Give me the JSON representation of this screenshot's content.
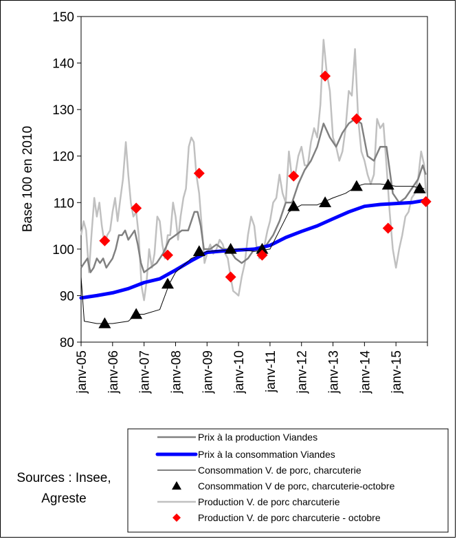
{
  "chart_data": {
    "type": "line",
    "ylabel": "Base 100 en 2010",
    "ylim": [
      80,
      150
    ],
    "yticks": [
      80,
      90,
      100,
      110,
      120,
      130,
      140,
      150
    ],
    "xtick_labels": [
      "janv-05",
      "janv-06",
      "janv-07",
      "janv-08",
      "janv-09",
      "janv-10",
      "janv-11",
      "janv-12",
      "janv-13",
      "janv-14",
      "janv-15"
    ],
    "x_start": "2005-01",
    "x_end": "2015-12",
    "grid": false,
    "legend_position": "bottom-right",
    "series": [
      {
        "name": "Prix à la production Viandes",
        "style": "line",
        "color": "#808080",
        "values": [
          [
            2005.0,
            96
          ],
          [
            2005.1,
            97
          ],
          [
            2005.2,
            98
          ],
          [
            2005.3,
            95
          ],
          [
            2005.4,
            96
          ],
          [
            2005.5,
            98
          ],
          [
            2005.6,
            97
          ],
          [
            2005.7,
            98
          ],
          [
            2005.8,
            96
          ],
          [
            2005.9,
            97
          ],
          [
            2006.0,
            98
          ],
          [
            2006.1,
            100
          ],
          [
            2006.2,
            103
          ],
          [
            2006.3,
            103
          ],
          [
            2006.4,
            104
          ],
          [
            2006.5,
            102
          ],
          [
            2006.6,
            103
          ],
          [
            2006.7,
            104
          ],
          [
            2006.8,
            101
          ],
          [
            2006.9,
            97
          ],
          [
            2007.0,
            95
          ],
          [
            2007.2,
            96
          ],
          [
            2007.4,
            97
          ],
          [
            2007.6,
            99
          ],
          [
            2007.8,
            102
          ],
          [
            2008.0,
            103
          ],
          [
            2008.2,
            104
          ],
          [
            2008.4,
            104
          ],
          [
            2008.6,
            108
          ],
          [
            2008.7,
            108
          ],
          [
            2008.8,
            105
          ],
          [
            2008.9,
            100
          ],
          [
            2009.1,
            100
          ],
          [
            2009.3,
            101
          ],
          [
            2009.5,
            100
          ],
          [
            2009.7,
            100
          ],
          [
            2009.9,
            98
          ],
          [
            2010.1,
            97
          ],
          [
            2010.3,
            98
          ],
          [
            2010.5,
            100
          ],
          [
            2010.7,
            100
          ],
          [
            2010.9,
            101
          ],
          [
            2011.1,
            103
          ],
          [
            2011.3,
            106
          ],
          [
            2011.5,
            110
          ],
          [
            2011.7,
            110
          ],
          [
            2011.9,
            114
          ],
          [
            2012.1,
            117
          ],
          [
            2012.3,
            119
          ],
          [
            2012.5,
            122
          ],
          [
            2012.7,
            127
          ],
          [
            2012.9,
            124
          ],
          [
            2013.1,
            122
          ],
          [
            2013.3,
            125
          ],
          [
            2013.5,
            127
          ],
          [
            2013.7,
            128
          ],
          [
            2013.9,
            127
          ],
          [
            2014.1,
            120
          ],
          [
            2014.3,
            119
          ],
          [
            2014.5,
            122
          ],
          [
            2014.7,
            122
          ],
          [
            2014.9,
            112
          ],
          [
            2015.1,
            110
          ],
          [
            2015.3,
            111
          ],
          [
            2015.5,
            113
          ],
          [
            2015.7,
            115
          ],
          [
            2015.85,
            118
          ],
          [
            2015.95,
            116
          ]
        ]
      },
      {
        "name": "Prix à la consommation Viandes",
        "style": "thickline",
        "color": "#0000ff",
        "values": [
          [
            2005.0,
            89.5
          ],
          [
            2005.5,
            90
          ],
          [
            2006.0,
            90.6
          ],
          [
            2006.5,
            91.5
          ],
          [
            2007.0,
            92.8
          ],
          [
            2007.5,
            93.6
          ],
          [
            2008.0,
            95.5
          ],
          [
            2008.5,
            97.5
          ],
          [
            2009.0,
            99.3
          ],
          [
            2009.5,
            99.6
          ],
          [
            2010.0,
            99.8
          ],
          [
            2010.5,
            100
          ],
          [
            2011.0,
            100.8
          ],
          [
            2011.5,
            102.5
          ],
          [
            2012.0,
            103.8
          ],
          [
            2012.5,
            105
          ],
          [
            2013.0,
            106.5
          ],
          [
            2013.5,
            108
          ],
          [
            2014.0,
            109.2
          ],
          [
            2014.5,
            109.6
          ],
          [
            2015.0,
            109.8
          ],
          [
            2015.5,
            110
          ],
          [
            2015.95,
            110.5
          ]
        ]
      },
      {
        "name": "Consommation V. de porc, charcuterie",
        "style": "thinline",
        "color": "#000000",
        "values": [
          [
            2005.0,
            94
          ],
          [
            2005.1,
            84.5
          ],
          [
            2005.5,
            84
          ],
          [
            2006.0,
            84
          ],
          [
            2006.5,
            84.5
          ],
          [
            2006.75,
            86
          ],
          [
            2007.0,
            86
          ],
          [
            2007.5,
            87
          ],
          [
            2007.8,
            92.5
          ],
          [
            2008.0,
            95
          ],
          [
            2008.5,
            98
          ],
          [
            2009.0,
            99.5
          ],
          [
            2009.5,
            99.7
          ],
          [
            2010.0,
            100
          ],
          [
            2010.5,
            99.5
          ],
          [
            2011.0,
            100
          ],
          [
            2011.3,
            104
          ],
          [
            2011.6,
            108
          ],
          [
            2012.0,
            109.5
          ],
          [
            2012.5,
            109.5
          ],
          [
            2013.0,
            111
          ],
          [
            2013.4,
            112
          ],
          [
            2013.75,
            113.5
          ],
          [
            2014.0,
            114
          ],
          [
            2014.5,
            114
          ],
          [
            2014.75,
            113.8
          ],
          [
            2015.0,
            113.5
          ],
          [
            2015.5,
            113.5
          ],
          [
            2015.9,
            113
          ]
        ]
      },
      {
        "name": "Consommation V de porc, charcuterie-octobre",
        "style": "triangle",
        "color": "#000000",
        "values": [
          [
            2005.75,
            84
          ],
          [
            2006.75,
            86
          ],
          [
            2007.75,
            92.5
          ],
          [
            2008.75,
            99.5
          ],
          [
            2009.75,
            100
          ],
          [
            2010.75,
            100
          ],
          [
            2011.75,
            109.2
          ],
          [
            2012.75,
            110
          ],
          [
            2013.75,
            113.5
          ],
          [
            2014.75,
            113.8
          ],
          [
            2015.75,
            113
          ]
        ]
      },
      {
        "name": "Production V. de porc charcuterie",
        "style": "line",
        "color": "#c0c0c0",
        "values": [
          [
            2005.0,
            103
          ],
          [
            2005.08,
            106
          ],
          [
            2005.16,
            104
          ],
          [
            2005.25,
            95
          ],
          [
            2005.33,
            103
          ],
          [
            2005.42,
            111
          ],
          [
            2005.5,
            107
          ],
          [
            2005.58,
            110
          ],
          [
            2005.66,
            105
          ],
          [
            2005.75,
            101
          ],
          [
            2005.83,
            103
          ],
          [
            2005.92,
            104
          ],
          [
            2006.0,
            108
          ],
          [
            2006.08,
            111
          ],
          [
            2006.16,
            106
          ],
          [
            2006.25,
            111
          ],
          [
            2006.33,
            115
          ],
          [
            2006.42,
            123
          ],
          [
            2006.5,
            116
          ],
          [
            2006.58,
            110
          ],
          [
            2006.66,
            107
          ],
          [
            2006.75,
            108
          ],
          [
            2006.83,
            103
          ],
          [
            2006.92,
            92
          ],
          [
            2007.0,
            89
          ],
          [
            2007.08,
            93
          ],
          [
            2007.16,
            100
          ],
          [
            2007.25,
            96
          ],
          [
            2007.33,
            99
          ],
          [
            2007.42,
            107
          ],
          [
            2007.5,
            106
          ],
          [
            2007.58,
            101
          ],
          [
            2007.66,
            98
          ],
          [
            2007.75,
            103
          ],
          [
            2007.83,
            103
          ],
          [
            2007.92,
            110
          ],
          [
            2008.0,
            107
          ],
          [
            2008.08,
            102
          ],
          [
            2008.16,
            107
          ],
          [
            2008.25,
            111
          ],
          [
            2008.33,
            113
          ],
          [
            2008.42,
            122
          ],
          [
            2008.5,
            124
          ],
          [
            2008.58,
            123
          ],
          [
            2008.66,
            116
          ],
          [
            2008.75,
            112
          ],
          [
            2008.83,
            105
          ],
          [
            2008.92,
            97
          ],
          [
            2009.0,
            99
          ],
          [
            2009.1,
            101
          ],
          [
            2009.2,
            99
          ],
          [
            2009.3,
            100
          ],
          [
            2009.4,
            102
          ],
          [
            2009.5,
            101
          ],
          [
            2009.58,
            99
          ],
          [
            2009.66,
            98
          ],
          [
            2009.75,
            94
          ],
          [
            2009.83,
            91
          ],
          [
            2009.92,
            90.5
          ],
          [
            2010.0,
            90
          ],
          [
            2010.1,
            94
          ],
          [
            2010.2,
            97
          ],
          [
            2010.3,
            103
          ],
          [
            2010.4,
            107
          ],
          [
            2010.5,
            105
          ],
          [
            2010.58,
            100
          ],
          [
            2010.66,
            98
          ],
          [
            2010.75,
            99
          ],
          [
            2010.83,
            101
          ],
          [
            2010.92,
            104
          ],
          [
            2011.0,
            106
          ],
          [
            2011.1,
            110
          ],
          [
            2011.2,
            111
          ],
          [
            2011.3,
            116
          ],
          [
            2011.4,
            112
          ],
          [
            2011.5,
            110
          ],
          [
            2011.6,
            121
          ],
          [
            2011.7,
            115
          ],
          [
            2011.8,
            116
          ],
          [
            2011.9,
            120
          ],
          [
            2012.0,
            122
          ],
          [
            2012.1,
            118
          ],
          [
            2012.2,
            118
          ],
          [
            2012.3,
            123
          ],
          [
            2012.4,
            126
          ],
          [
            2012.5,
            124
          ],
          [
            2012.6,
            131
          ],
          [
            2012.7,
            145
          ],
          [
            2012.8,
            138
          ],
          [
            2012.9,
            134
          ],
          [
            2013.0,
            124
          ],
          [
            2013.1,
            122
          ],
          [
            2013.2,
            119
          ],
          [
            2013.3,
            121
          ],
          [
            2013.4,
            126
          ],
          [
            2013.5,
            134
          ],
          [
            2013.6,
            133
          ],
          [
            2013.7,
            143
          ],
          [
            2013.8,
            128
          ],
          [
            2013.9,
            121
          ],
          [
            2014.0,
            119
          ],
          [
            2014.1,
            116
          ],
          [
            2014.2,
            114
          ],
          [
            2014.3,
            116
          ],
          [
            2014.4,
            128
          ],
          [
            2014.5,
            126
          ],
          [
            2014.6,
            127
          ],
          [
            2014.7,
            118
          ],
          [
            2014.8,
            108
          ],
          [
            2014.9,
            100
          ],
          [
            2015.0,
            96
          ],
          [
            2015.1,
            100
          ],
          [
            2015.2,
            103
          ],
          [
            2015.3,
            107
          ],
          [
            2015.4,
            108
          ],
          [
            2015.5,
            111
          ],
          [
            2015.6,
            112
          ],
          [
            2015.7,
            115
          ],
          [
            2015.8,
            121
          ],
          [
            2015.9,
            118
          ],
          [
            2015.95,
            112
          ]
        ]
      },
      {
        "name": "Production V. de porc charcuterie - octobre",
        "style": "diamond",
        "color": "#ff0000",
        "values": [
          [
            2005.75,
            101.8
          ],
          [
            2006.75,
            108.8
          ],
          [
            2007.75,
            98.7
          ],
          [
            2008.75,
            116.3
          ],
          [
            2009.75,
            94
          ],
          [
            2010.75,
            98.7
          ],
          [
            2011.75,
            115.7
          ],
          [
            2012.75,
            137.2
          ],
          [
            2013.75,
            128
          ],
          [
            2014.75,
            104.5
          ],
          [
            2015.95,
            110.2
          ]
        ]
      }
    ]
  },
  "sources": [
    "Sources : Insee,",
    "Agreste"
  ]
}
